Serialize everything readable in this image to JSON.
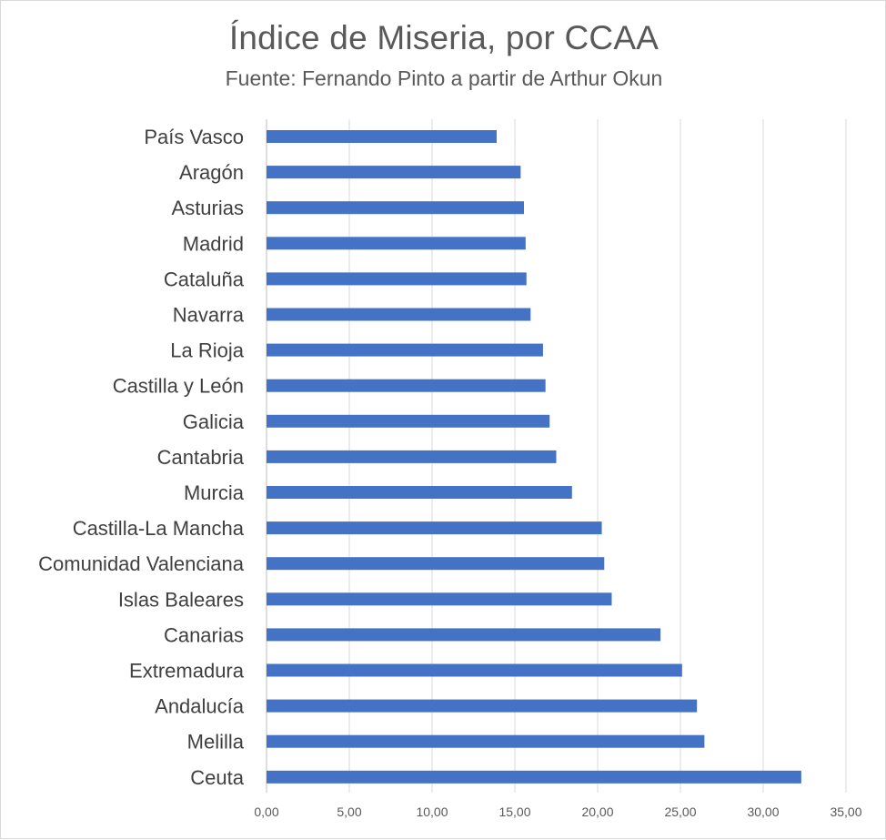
{
  "chart_data": {
    "type": "bar",
    "orientation": "horizontal",
    "title": "Índice de Miseria, por CCAA",
    "subtitle": "Fuente: Fernando Pinto a partir de Arthur Okun",
    "xlabel": "",
    "ylabel": "",
    "xlim": [
      0,
      35
    ],
    "x_ticks": [
      "0,00",
      "5,00",
      "10,00",
      "15,00",
      "20,00",
      "25,00",
      "30,00",
      "35,00"
    ],
    "grid": true,
    "legend": "none",
    "bar_color": "#4472C4",
    "categories": [
      "País Vasco",
      "Aragón",
      "Asturias",
      "Madrid",
      "Cataluña",
      "Navarra",
      "La Rioja",
      "Castilla y León",
      "Galicia",
      "Cantabria",
      "Murcia",
      "Castilla-La Mancha",
      "Comunidad Valenciana",
      "Islas Baleares",
      "Canarias",
      "Extremadura",
      "Andalucía",
      "Melilla",
      "Ceuta"
    ],
    "values": [
      13.9,
      15.35,
      15.55,
      15.65,
      15.7,
      15.95,
      16.7,
      16.85,
      17.1,
      17.5,
      18.45,
      20.25,
      20.4,
      20.85,
      23.8,
      25.1,
      26.0,
      26.45,
      32.3
    ]
  }
}
